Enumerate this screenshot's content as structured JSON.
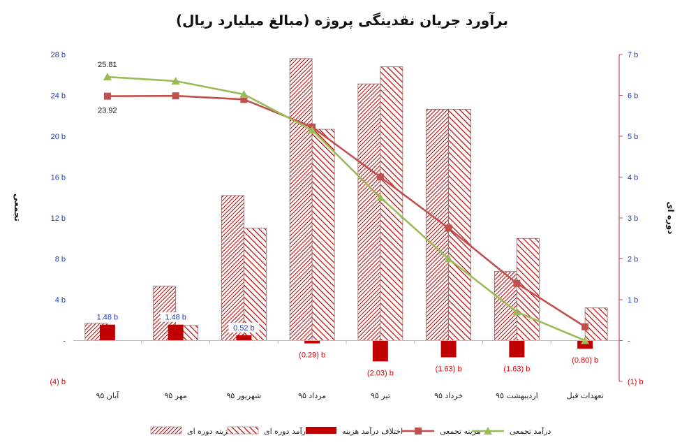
{
  "chart_data": {
    "type": "bar",
    "title": "برآورد جریان نقدینگی پروژه (مبالغ میلیارد ریال)",
    "ylabel_left": "تجمعی",
    "ylabel_right": "دوره ای",
    "categories": [
      "آبان ۹۵",
      "مهر ۹۵",
      "شهریور ۹۵",
      "مرداد ۹۵",
      "تیر ۹۵",
      "خرداد ۹۵",
      "اردیبهشت ۹۵",
      "تعهدات قبل"
    ],
    "left_axis": {
      "min": -4,
      "max": 28,
      "step": 4,
      "tick_labels": [
        "(4) b",
        "-",
        "4 b",
        "8 b",
        "12 b",
        "16 b",
        "20 b",
        "24 b",
        "28 b"
      ]
    },
    "right_axis": {
      "min": -1,
      "max": 7,
      "step": 1,
      "tick_labels": [
        "(1) b",
        "-",
        "1 b",
        "2 b",
        "3 b",
        "4 b",
        "5 b",
        "6 b",
        "7 b"
      ]
    },
    "grid": false,
    "legend_position": "bottom",
    "series": [
      {
        "name": "هزینه دوره ای",
        "kind": "bar",
        "axis": "right",
        "pattern": "dense",
        "values": [
          0.42,
          1.33,
          3.55,
          6.9,
          6.28,
          5.66,
          1.69,
          0.0
        ]
      },
      {
        "name": "درآمد دوره ای",
        "kind": "bar",
        "axis": "right",
        "pattern": "sparse",
        "values": [
          0.0,
          0.37,
          2.75,
          5.17,
          6.7,
          5.66,
          2.5,
          0.8
        ]
      },
      {
        "name": "اختلاف درآمد هزینه",
        "kind": "bar",
        "axis": "right",
        "color": "#c00000",
        "values": [
          0.39,
          0.39,
          0.13,
          -0.07,
          -0.51,
          -0.41,
          -0.41,
          -0.2
        ],
        "labels": [
          "1.48 b",
          "1.48 b",
          "0.52 b",
          "(0.29) b",
          "(2.03) b",
          "(1.63) b",
          "(1.63) b",
          "(0.80) b"
        ]
      },
      {
        "name": "هزینه تجمعی",
        "kind": "line",
        "axis": "left",
        "color": "#c0504d",
        "marker": "square",
        "values": [
          23.92,
          23.95,
          23.6,
          20.9,
          16.0,
          11.0,
          5.6,
          1.35
        ]
      },
      {
        "name": "درآمد تجمعی",
        "kind": "line",
        "axis": "left",
        "color": "#9bbb59",
        "marker": "triangle",
        "values": [
          25.81,
          25.4,
          24.1,
          20.6,
          14.0,
          8.0,
          2.8,
          0.0
        ]
      }
    ],
    "annotations": [
      "25.81",
      "23.92"
    ],
    "colors": {
      "bar_red": "#c00000",
      "hatch": "#c00000",
      "left_tick": "#1f3dbf",
      "neg_label": "#e00000",
      "axis_right": "#c0504d",
      "line_cost": "#c0504d",
      "line_income": "#9bbb59"
    }
  }
}
